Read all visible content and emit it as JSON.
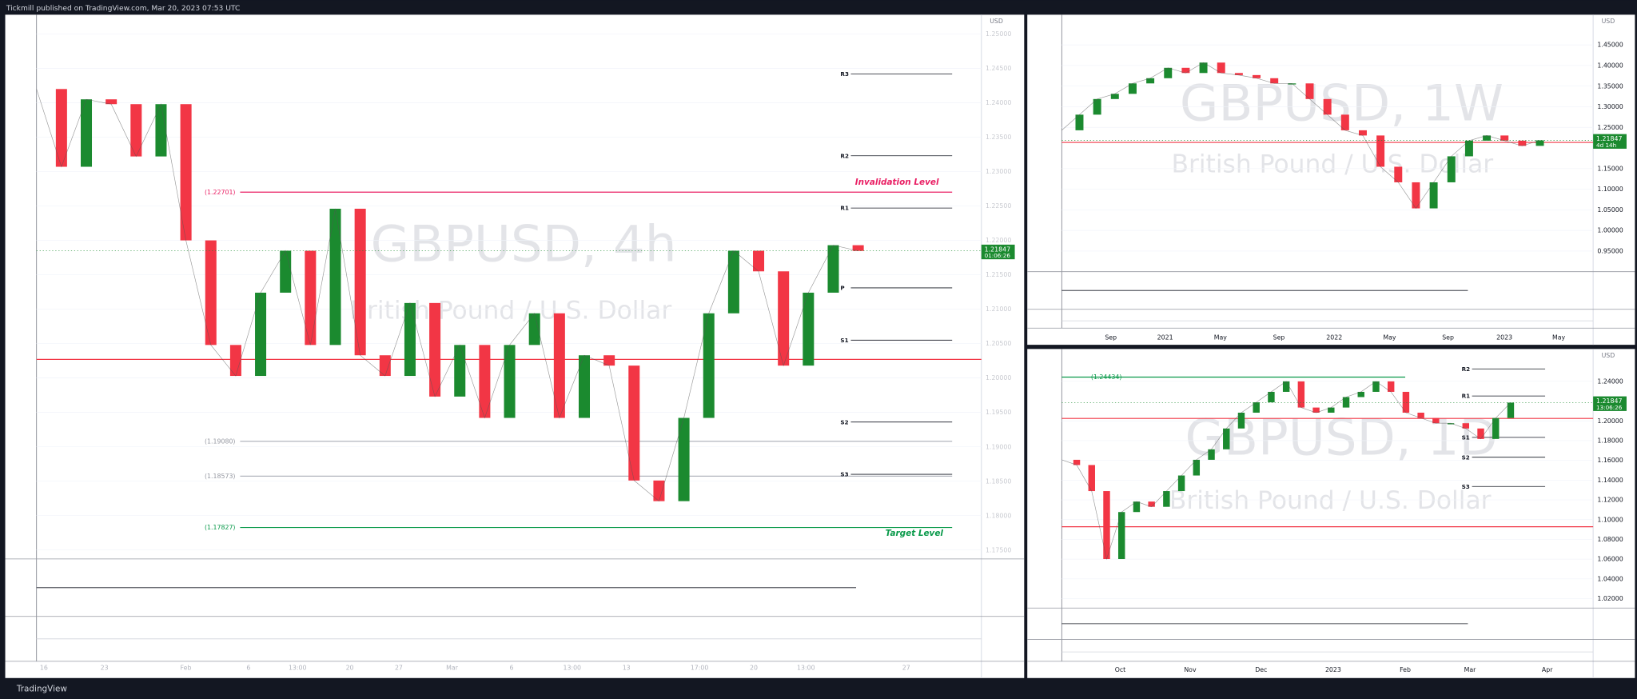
{
  "header": {
    "publisher": "Tickmill published on TradingView.com, Mar 20, 2023 07:53 UTC"
  },
  "footer": {
    "brand": "TradingView"
  },
  "chart_data": [
    {
      "type": "line",
      "title": "GBPUSD, 4h",
      "subtitle": "British Pound / U.S. Dollar",
      "y_axis_label": "USD",
      "values": [
        1.242,
        1.2307,
        1.2405,
        1.2398,
        1.2322,
        1.2398,
        1.22,
        1.2048,
        1.2003,
        1.2124,
        1.2185,
        1.2048,
        1.2246,
        1.2033,
        1.2003,
        1.2109,
        1.1973,
        1.2048,
        1.1942,
        1.2048,
        1.2094,
        1.1942,
        1.2033,
        1.2018,
        1.1851,
        1.1821,
        1.1942,
        1.2094,
        1.2185,
        1.2155,
        1.2018,
        1.2124,
        1.2193,
        1.21847
      ],
      "ylim": [
        1.1737,
        1.2528
      ],
      "yticks": [
        {
          "value": 1.175,
          "label": "1.17500"
        },
        {
          "value": 1.18,
          "label": "1.18000"
        },
        {
          "value": 1.185,
          "label": "1.18500"
        },
        {
          "value": 1.19,
          "label": "1.19000"
        },
        {
          "value": 1.195,
          "label": "1.19500"
        },
        {
          "value": 1.2,
          "label": "1.20000"
        },
        {
          "value": 1.205,
          "label": "1.20500"
        },
        {
          "value": 1.21,
          "label": "1.21000"
        },
        {
          "value": 1.215,
          "label": "1.21500"
        },
        {
          "value": 1.22,
          "label": "1.22000"
        },
        {
          "value": 1.225,
          "label": "1.22500"
        },
        {
          "value": 1.23,
          "label": "1.23000"
        },
        {
          "value": 1.235,
          "label": "1.23500"
        },
        {
          "value": 1.24,
          "label": "1.24000"
        },
        {
          "value": 1.245,
          "label": "1.24500"
        },
        {
          "value": 1.25,
          "label": "1.25000"
        }
      ],
      "time_labels": [
        "16",
        "23",
        "Feb",
        "6",
        "13:00",
        "20",
        "27",
        "Mar",
        "6",
        "13:00",
        "13",
        "17:00",
        "20",
        "13:00",
        "27"
      ],
      "last_price": 1.21847,
      "countdown": "01:06:26",
      "levels": [
        {
          "label": "R3",
          "value": 1.2442
        },
        {
          "label": "R2",
          "value": 1.2323
        },
        {
          "label": "R1",
          "value": 1.2247
        },
        {
          "label": "P",
          "value": 1.2131
        },
        {
          "label": "S1",
          "value": 1.2055
        },
        {
          "label": "S2",
          "value": 1.1936
        },
        {
          "label": "S3",
          "value": 1.186
        }
      ],
      "lines": [
        {
          "value": 1.22701,
          "label": "(1.22701)",
          "color": "#e91e63"
        },
        {
          "value": 1.1908,
          "label": "(1.19080)",
          "color": "#b2b5be"
        },
        {
          "value": 1.18573,
          "label": "(1.18573)",
          "color": "#b2b5be"
        },
        {
          "value": 1.17827,
          "label": "(1.17827)",
          "color": "#089949"
        },
        {
          "value": 1.2027,
          "color": "#f23645"
        }
      ],
      "annotations": [
        {
          "text": "Invalidation Level",
          "value": 1.22701,
          "color": "#e91e63"
        },
        {
          "text": "Target  Level",
          "value": 1.17827,
          "color": "#089949"
        }
      ]
    },
    {
      "type": "line",
      "title": "GBPUSD, 1W",
      "subtitle": "British Pound / U.S. Dollar",
      "y_axis_label": "USD",
      "values": [
        1.2429,
        1.2808,
        1.3187,
        1.3313,
        1.3566,
        1.3692,
        1.3944,
        1.3818,
        1.4071,
        1.3818,
        1.3768,
        1.3692,
        1.3566,
        1.3566,
        1.3187,
        1.2808,
        1.2429,
        1.2303,
        1.1545,
        1.1167,
        1.0535,
        1.1167,
        1.1798,
        1.2177,
        1.2303,
        1.2177,
        1.2051,
        1.21847
      ],
      "ylim": [
        0.9,
        1.5232
      ],
      "yticks": [
        {
          "value": 0.95,
          "label": "0.95000"
        },
        {
          "value": 1.0,
          "label": "1.00000"
        },
        {
          "value": 1.05,
          "label": "1.05000"
        },
        {
          "value": 1.1,
          "label": "1.10000"
        },
        {
          "value": 1.15,
          "label": "1.15000"
        },
        {
          "value": 1.25,
          "label": "1.25000"
        },
        {
          "value": 1.3,
          "label": "1.30000"
        },
        {
          "value": 1.35,
          "label": "1.35000"
        },
        {
          "value": 1.4,
          "label": "1.40000"
        },
        {
          "value": 1.45,
          "label": "1.45000"
        }
      ],
      "time_labels": [
        "Sep",
        "2021",
        "May",
        "Sep",
        "2022",
        "May",
        "Sep",
        "2023",
        "May"
      ],
      "last_price": 1.21847,
      "countdown": "4d 14h",
      "lines": [
        {
          "value": 1.2135,
          "color": "#f23645"
        }
      ]
    },
    {
      "type": "line",
      "title": "GBPUSD, 1D",
      "subtitle": "British Pound / U.S. Dollar",
      "y_axis_label": "USD",
      "values": [
        1.1606,
        1.1553,
        1.1289,
        1.0601,
        1.1077,
        1.1183,
        1.113,
        1.1289,
        1.1447,
        1.1606,
        1.1712,
        1.1923,
        1.2083,
        1.2188,
        1.2294,
        1.24,
        1.2135,
        1.2083,
        1.2135,
        1.2241,
        1.2294,
        1.24,
        1.2294,
        1.2083,
        1.2029,
        1.1976,
        1.1976,
        1.1923,
        1.1817,
        1.2029,
        1.21847
      ],
      "ylim": [
        1.0105,
        1.2728
      ],
      "yticks": [
        {
          "value": 1.02,
          "label": "1.02000"
        },
        {
          "value": 1.04,
          "label": "1.04000"
        },
        {
          "value": 1.06,
          "label": "1.06000"
        },
        {
          "value": 1.08,
          "label": "1.08000"
        },
        {
          "value": 1.1,
          "label": "1.10000"
        },
        {
          "value": 1.12,
          "label": "1.12000"
        },
        {
          "value": 1.14,
          "label": "1.14000"
        },
        {
          "value": 1.16,
          "label": "1.16000"
        },
        {
          "value": 1.18,
          "label": "1.18000"
        },
        {
          "value": 1.2,
          "label": "1.20000"
        },
        {
          "value": 1.24,
          "label": "1.24000"
        }
      ],
      "time_labels": [
        "Oct",
        "Nov",
        "Dec",
        "2023",
        "Feb",
        "Mar",
        "Apr"
      ],
      "last_price": 1.21847,
      "countdown": "13:06:26",
      "levels": [
        {
          "label": "R2",
          "value": 1.2526
        },
        {
          "label": "R1",
          "value": 1.2252
        },
        {
          "label": "S1",
          "value": 1.1833
        },
        {
          "label": "S2",
          "value": 1.1632
        },
        {
          "label": "S3",
          "value": 1.1336
        }
      ],
      "lines": [
        {
          "value": 1.24434,
          "label": "(1.24434)",
          "color": "#089949"
        },
        {
          "value": 1.0928,
          "color": "#f23645"
        },
        {
          "value": 1.2025,
          "color": "#f23645"
        }
      ]
    }
  ]
}
